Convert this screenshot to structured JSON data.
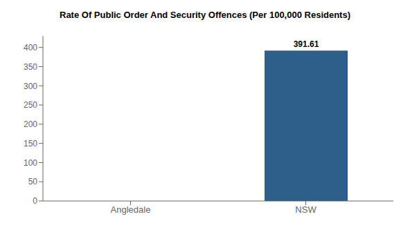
{
  "chart_data": {
    "type": "bar",
    "title": "Rate Of Public Order And Security Offences (Per 100,000 Residents)",
    "categories": [
      "Angledale",
      "NSW"
    ],
    "values": [
      0,
      391.61
    ],
    "color": "#2e5f8a",
    "ylim": [
      0,
      430
    ],
    "yticks": [
      0,
      50,
      100,
      150,
      200,
      250,
      300,
      350,
      400
    ],
    "grid": false,
    "data_labels": true
  }
}
